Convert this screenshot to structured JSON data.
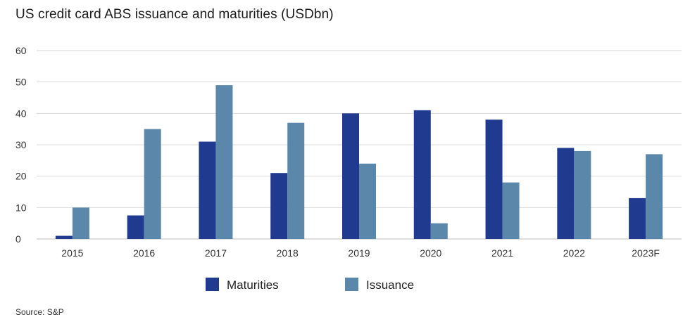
{
  "chart_data": {
    "type": "bar",
    "title": "US credit card ABS issuance and maturities (USDbn)",
    "categories": [
      "2015",
      "2016",
      "2017",
      "2018",
      "2019",
      "2020",
      "2021",
      "2022",
      "2023F"
    ],
    "series": [
      {
        "name": "Maturities",
        "values": [
          1,
          7.5,
          31,
          21,
          40,
          41,
          38,
          29,
          13
        ],
        "color": "#1f3a8f"
      },
      {
        "name": "Issuance",
        "values": [
          10,
          35,
          49,
          37,
          24,
          5,
          18,
          28,
          27
        ],
        "color": "#5b87ab"
      }
    ],
    "ylim": [
      0,
      60
    ],
    "yticks": [
      0,
      10,
      20,
      30,
      40,
      50,
      60
    ],
    "grid": true,
    "gridColor": "#d9d9d9",
    "legend": "bottom"
  },
  "source": "Source: S&P"
}
